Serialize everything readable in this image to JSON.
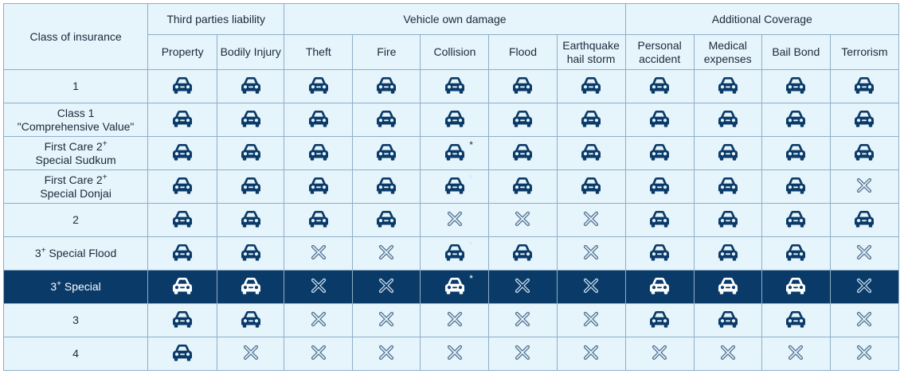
{
  "header": {
    "class_label": "Class of insurance",
    "groups": [
      {
        "label": "Third parties liability",
        "span": 2
      },
      {
        "label": "Vehicle own damage",
        "span": 5
      },
      {
        "label": "Additional Coverage",
        "span": 4
      }
    ],
    "columns": [
      "Property",
      "Bodily Injury",
      "Theft",
      "Fire",
      "Collision",
      "Flood",
      "Earthquake hail storm",
      "Personal accident",
      "Medical expenses",
      "Bail Bond",
      "Terrorism"
    ]
  },
  "rows": [
    {
      "class_main": "1",
      "class_sup": "",
      "class_sub": "",
      "highlight": false,
      "cells": [
        "car",
        "car",
        "car",
        "car",
        "car",
        "car",
        "car",
        "car",
        "car",
        "car",
        "car"
      ],
      "stars": [
        false,
        false,
        false,
        false,
        false,
        false,
        false,
        false,
        false,
        false,
        false
      ]
    },
    {
      "class_main": "Class 1",
      "class_sup": "",
      "class_sub": "\"Comprehensive Value\"",
      "highlight": false,
      "cells": [
        "car",
        "car",
        "car",
        "car",
        "car",
        "car",
        "car",
        "car",
        "car",
        "car",
        "car"
      ],
      "stars": [
        false,
        false,
        false,
        false,
        false,
        false,
        false,
        false,
        false,
        false,
        false
      ]
    },
    {
      "class_main": "First Care 2",
      "class_sup": "+",
      "class_sub": "Special Sudkum",
      "highlight": false,
      "cells": [
        "car",
        "car",
        "car",
        "car",
        "car",
        "car",
        "car",
        "car",
        "car",
        "car",
        "car"
      ],
      "stars": [
        false,
        false,
        false,
        false,
        true,
        false,
        false,
        false,
        false,
        false,
        false
      ]
    },
    {
      "class_main": "First Care 2",
      "class_sup": "+",
      "class_sub": "Special Donjai",
      "highlight": false,
      "cells": [
        "car",
        "car",
        "car",
        "car",
        "car",
        "car",
        "car",
        "car",
        "car",
        "car",
        "x"
      ],
      "stars": [
        false,
        false,
        false,
        false,
        "faint",
        false,
        false,
        false,
        false,
        false,
        false
      ]
    },
    {
      "class_main": "2",
      "class_sup": "",
      "class_sub": "",
      "highlight": false,
      "cells": [
        "car",
        "car",
        "car",
        "car",
        "x",
        "x",
        "x",
        "car",
        "car",
        "car",
        "car"
      ],
      "stars": [
        false,
        false,
        false,
        false,
        false,
        false,
        false,
        false,
        false,
        false,
        false
      ]
    },
    {
      "class_main": "3",
      "class_sup": "+",
      "class_main2": " Special Flood",
      "class_sub": "",
      "highlight": false,
      "cells": [
        "car",
        "car",
        "x",
        "x",
        "car",
        "car",
        "x",
        "car",
        "car",
        "car",
        "x"
      ],
      "stars": [
        false,
        false,
        false,
        false,
        "faint",
        false,
        false,
        false,
        false,
        false,
        false
      ]
    },
    {
      "class_main": "3",
      "class_sup": "+",
      "class_main2": " Special",
      "class_sub": "",
      "highlight": true,
      "cells": [
        "car",
        "car",
        "x",
        "x",
        "car",
        "x",
        "x",
        "car",
        "car",
        "car",
        "x"
      ],
      "stars": [
        false,
        false,
        false,
        false,
        true,
        false,
        false,
        false,
        false,
        false,
        false
      ]
    },
    {
      "class_main": "3",
      "class_sup": "",
      "class_sub": "",
      "highlight": false,
      "cells": [
        "car",
        "car",
        "x",
        "x",
        "x",
        "x",
        "x",
        "car",
        "car",
        "car",
        "x"
      ],
      "stars": [
        false,
        false,
        false,
        false,
        false,
        false,
        false,
        false,
        false,
        false,
        false
      ]
    },
    {
      "class_main": "4",
      "class_sup": "",
      "class_sub": "",
      "highlight": false,
      "cells": [
        "car",
        "x",
        "x",
        "x",
        "x",
        "x",
        "x",
        "x",
        "x",
        "x",
        "x"
      ],
      "stars": [
        false,
        false,
        false,
        false,
        false,
        false,
        false,
        false,
        false,
        false,
        false
      ]
    }
  ],
  "icons": {
    "covered": "car-icon",
    "not_covered": "cross-icon",
    "note": "asterisk"
  },
  "colors": {
    "cell_bg": "#e6f4fc",
    "border": "#8eaec8",
    "icon": "#0a3a68",
    "cross": "#4e6f8e",
    "highlight_bg": "#0a3a68",
    "highlight_fg": "#ffffff"
  },
  "star_char": "*"
}
